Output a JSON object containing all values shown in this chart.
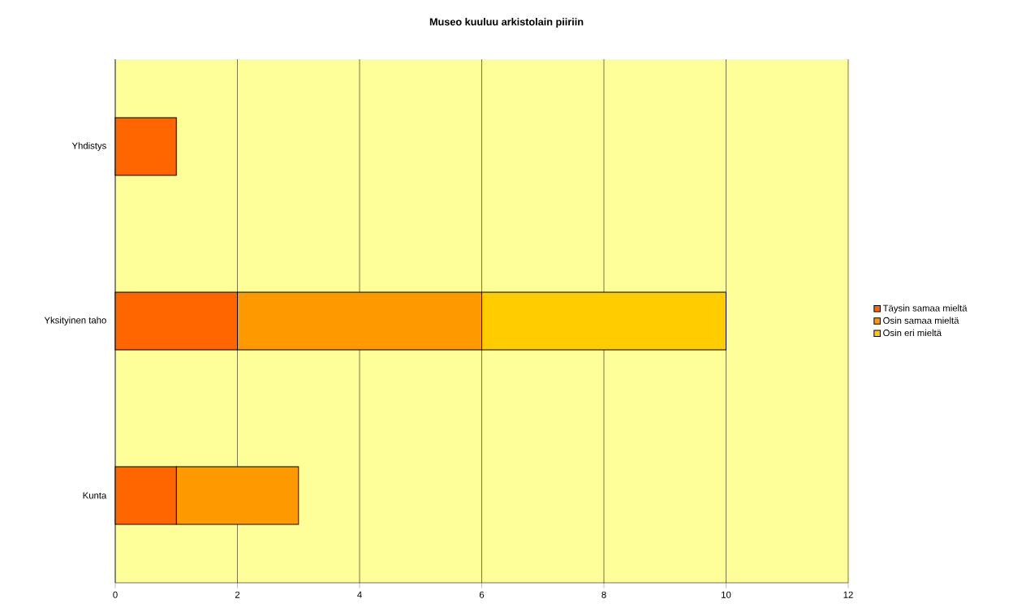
{
  "chart_data": {
    "type": "bar",
    "orientation": "horizontal",
    "stacked": true,
    "title": "Museo kuuluu arkistolain piiriin",
    "categories": [
      "Yhdistys",
      "Yksityinen taho",
      "Kunta"
    ],
    "series": [
      {
        "name": "Täysin samaa mieltä",
        "color": "#ff6600",
        "values": [
          1,
          2,
          1
        ]
      },
      {
        "name": "Osin samaa mieltä",
        "color": "#ff9900",
        "values": [
          null,
          4,
          2
        ]
      },
      {
        "name": "Osin eri mieltä",
        "color": "#ffcc00",
        "values": [
          null,
          4,
          null
        ]
      }
    ],
    "xlim": [
      0,
      12
    ],
    "xticks": [
      0,
      2,
      4,
      6,
      8,
      10,
      12
    ],
    "grid": "x",
    "legend": "right"
  }
}
